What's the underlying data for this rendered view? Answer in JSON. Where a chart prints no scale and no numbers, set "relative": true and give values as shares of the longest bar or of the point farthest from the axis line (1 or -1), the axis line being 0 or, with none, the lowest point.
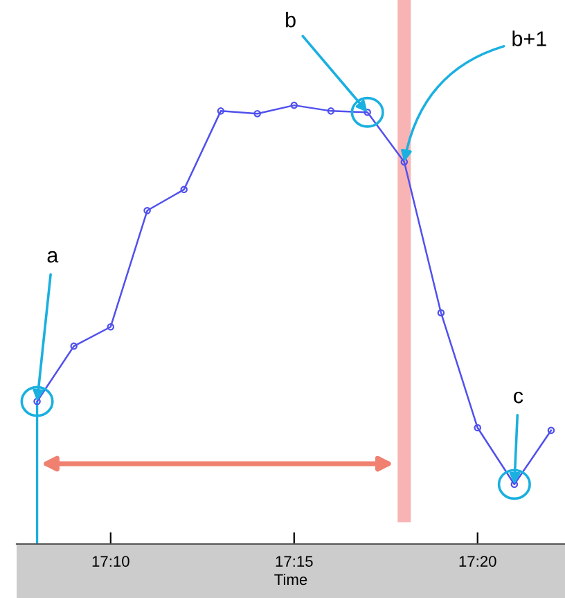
{
  "chart_data": {
    "type": "line",
    "relative": true,
    "xlabel": "Time",
    "x": [
      17.1333,
      17.15,
      17.1667,
      17.1833,
      17.2,
      17.2167,
      17.2333,
      17.25,
      17.2667,
      17.2833,
      17.3,
      17.3167,
      17.3333,
      17.35,
      17.3667
    ],
    "series": [
      {
        "color": "#5050ee",
        "values": [
          0.325,
          0.451,
          0.495,
          0.76,
          0.808,
          0.987,
          0.981,
          1,
          0.987,
          0.984,
          0.871,
          0.527,
          0.265,
          0.136,
          0.259
        ]
      }
    ],
    "xlim": [
      17.124,
      17.373
    ],
    "xticks": [
      {
        "value": 17.1667,
        "label": "17:10"
      },
      {
        "value": 17.25,
        "label": "17:15"
      },
      {
        "value": 17.3333,
        "label": "17:20"
      }
    ],
    "marker": "circle",
    "line_style": "solid",
    "grid": false,
    "legend": false,
    "bands": [
      {
        "axis": "x",
        "from": 17.297,
        "to": 17.303,
        "color": "#f8b4b4"
      }
    ],
    "ref_lines": [
      {
        "axis": "x",
        "value": 17.1333,
        "color": "#1ab0e0"
      }
    ],
    "annotations": [
      {
        "text": "a",
        "x": 17.1333,
        "y": 0.325
      },
      {
        "text": "b",
        "x": 17.2833,
        "y": 0.984
      },
      {
        "text": "b+1",
        "x": 17.3,
        "y": 0.871
      },
      {
        "text": "c",
        "x": 17.35,
        "y": 0.136
      }
    ]
  }
}
